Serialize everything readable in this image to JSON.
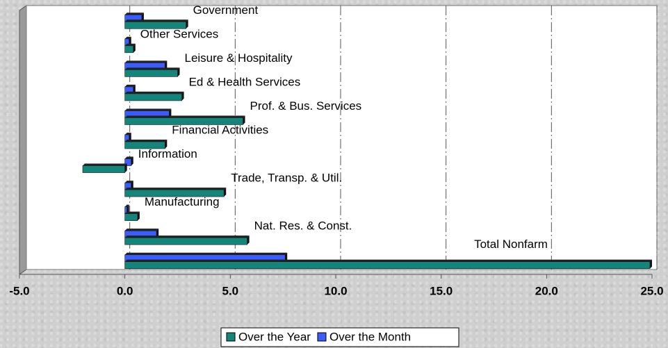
{
  "chart_data": {
    "type": "bar",
    "orientation": "horizontal",
    "categories": [
      "Total Nonfarm",
      "Nat. Res. & Const.",
      "Manufacturing",
      "Trade, Transp. & Util.",
      "Information",
      "Financial Activities",
      "Prof. & Bus. Services",
      "Ed & Health Services",
      "Leisure & Hospitality",
      "Other Services",
      "Government"
    ],
    "series": [
      {
        "name": "Over the Year",
        "color": "#14857a",
        "values": [
          24.9,
          5.8,
          0.6,
          4.7,
          -2.0,
          1.9,
          5.6,
          2.7,
          2.5,
          0.4,
          2.9
        ]
      },
      {
        "name": "Over the Month",
        "color": "#3b5cff",
        "values": [
          7.6,
          1.5,
          0.1,
          0.3,
          0.3,
          0.2,
          2.1,
          0.4,
          1.9,
          0.2,
          0.8
        ]
      }
    ],
    "xlim": [
      -5,
      25
    ],
    "xticks": [
      {
        "value": -5,
        "label": "-5.0"
      },
      {
        "value": 0,
        "label": "0.0"
      },
      {
        "value": 5,
        "label": "5.0"
      },
      {
        "value": 10,
        "label": "10.0"
      },
      {
        "value": 15,
        "label": "15.0"
      },
      {
        "value": 20,
        "label": "20.0"
      },
      {
        "value": 25,
        "label": "25.0"
      }
    ],
    "grid": true,
    "legend": "bottom"
  }
}
